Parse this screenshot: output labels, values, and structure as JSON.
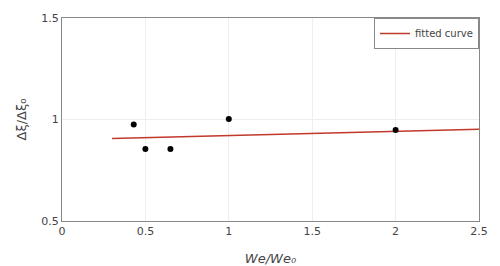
{
  "chart_data": {
    "type": "scatter",
    "x_label": "We/We₀",
    "y_label": "Δξ/Δξ₀",
    "series": [
      {
        "name": "fitted curve",
        "type": "line",
        "color": "#c0392b",
        "x": [
          0.3,
          2.5
        ],
        "values": [
          0.906,
          0.952
        ]
      },
      {
        "type": "scatter",
        "color": "black",
        "x": [
          0.43,
          0.5,
          0.65,
          1.0,
          2.0
        ],
        "values": [
          0.975,
          0.855,
          0.855,
          1.002,
          0.948
        ]
      }
    ],
    "hline": {
      "value": 1.0,
      "color": "#aaaaaa"
    },
    "xlim": [
      0,
      2.5
    ],
    "ylim": [
      0.5,
      1.5
    ],
    "xticks": [
      0,
      0.5,
      1,
      1.5,
      2,
      2.5
    ],
    "yticks": [
      0.5,
      1,
      1.5
    ],
    "grid": true,
    "legend": "upper right"
  }
}
